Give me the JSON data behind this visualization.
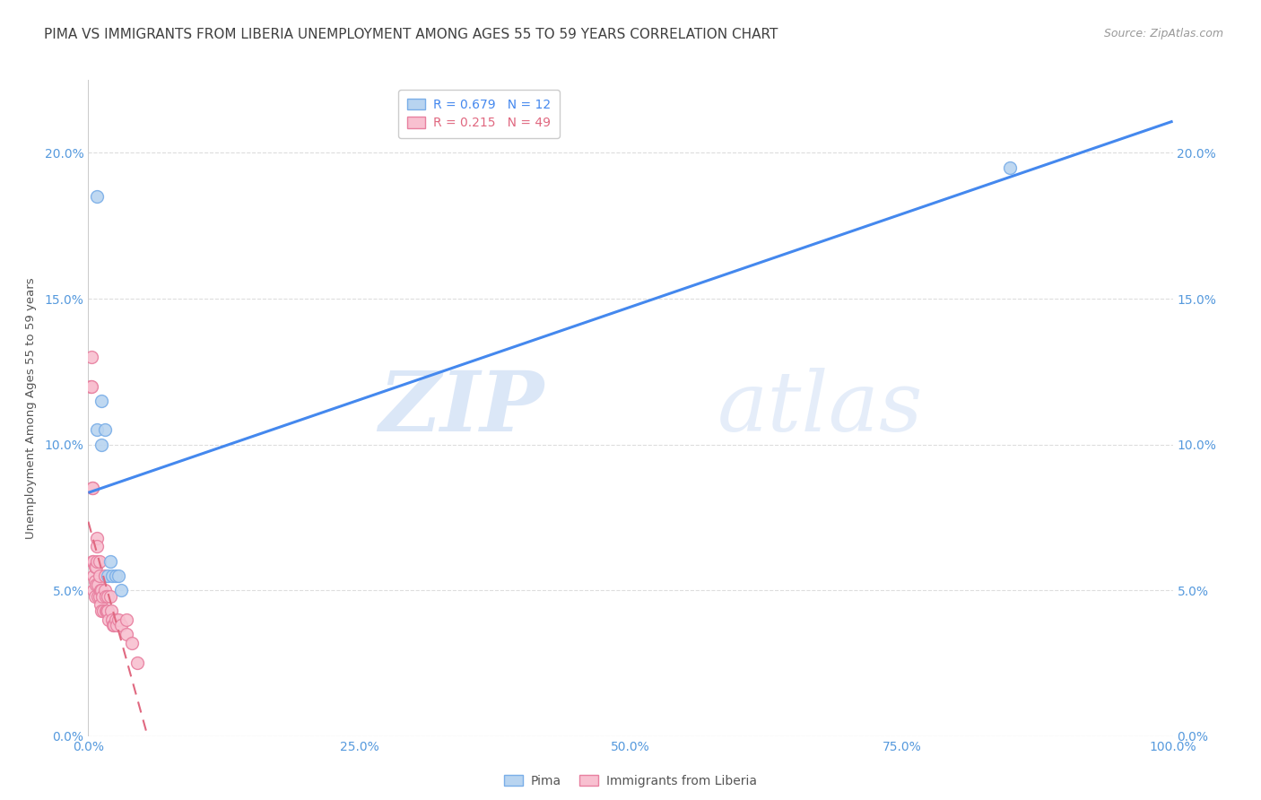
{
  "title": "PIMA VS IMMIGRANTS FROM LIBERIA UNEMPLOYMENT AMONG AGES 55 TO 59 YEARS CORRELATION CHART",
  "source": "Source: ZipAtlas.com",
  "ylabel": "Unemployment Among Ages 55 to 59 years",
  "watermark_zip": "ZIP",
  "watermark_atlas": "atlas",
  "pima_R": 0.679,
  "pima_N": 12,
  "liberia_R": 0.215,
  "liberia_N": 49,
  "pima_color": "#b8d4f0",
  "pima_edge_color": "#7aaee8",
  "liberia_color": "#f8c0d0",
  "liberia_edge_color": "#e880a0",
  "regression_pima_color": "#4488ee",
  "regression_liberia_color": "#e06880",
  "title_color": "#404040",
  "axis_color": "#5599dd",
  "grid_color": "#dddddd",
  "background_color": "#ffffff",
  "pima_x": [
    0.008,
    0.008,
    0.012,
    0.012,
    0.015,
    0.018,
    0.02,
    0.022,
    0.025,
    0.028,
    0.03,
    0.85
  ],
  "pima_y": [
    0.185,
    0.105,
    0.115,
    0.1,
    0.105,
    0.055,
    0.06,
    0.055,
    0.055,
    0.055,
    0.05,
    0.195
  ],
  "liberia_x": [
    0.002,
    0.003,
    0.003,
    0.004,
    0.004,
    0.004,
    0.005,
    0.005,
    0.005,
    0.006,
    0.006,
    0.006,
    0.007,
    0.007,
    0.008,
    0.008,
    0.008,
    0.009,
    0.009,
    0.01,
    0.01,
    0.01,
    0.011,
    0.011,
    0.012,
    0.012,
    0.013,
    0.014,
    0.015,
    0.015,
    0.016,
    0.016,
    0.017,
    0.018,
    0.018,
    0.019,
    0.02,
    0.021,
    0.022,
    0.023,
    0.024,
    0.025,
    0.026,
    0.028,
    0.03,
    0.035,
    0.035,
    0.04,
    0.045
  ],
  "liberia_y": [
    0.12,
    0.13,
    0.12,
    0.085,
    0.085,
    0.06,
    0.06,
    0.055,
    0.05,
    0.058,
    0.053,
    0.048,
    0.058,
    0.052,
    0.068,
    0.065,
    0.06,
    0.052,
    0.048,
    0.06,
    0.055,
    0.048,
    0.05,
    0.045,
    0.05,
    0.043,
    0.048,
    0.043,
    0.055,
    0.05,
    0.048,
    0.043,
    0.043,
    0.048,
    0.043,
    0.04,
    0.048,
    0.043,
    0.04,
    0.038,
    0.038,
    0.04,
    0.038,
    0.04,
    0.038,
    0.04,
    0.035,
    0.032,
    0.025
  ],
  "xlim": [
    0.0,
    1.0
  ],
  "ylim": [
    0.0,
    0.225
  ],
  "yticks": [
    0.0,
    0.05,
    0.1,
    0.15,
    0.2
  ],
  "ytick_labels": [
    "0.0%",
    "5.0%",
    "10.0%",
    "15.0%",
    "20.0%"
  ],
  "xticks": [
    0.0,
    0.25,
    0.5,
    0.75,
    1.0
  ],
  "xtick_labels": [
    "0.0%",
    "25.0%",
    "50.0%",
    "75.0%",
    "100.0%"
  ],
  "marker_size": 100,
  "title_fontsize": 11,
  "label_fontsize": 9.5,
  "tick_fontsize": 10,
  "legend_fontsize": 10,
  "source_fontsize": 9
}
